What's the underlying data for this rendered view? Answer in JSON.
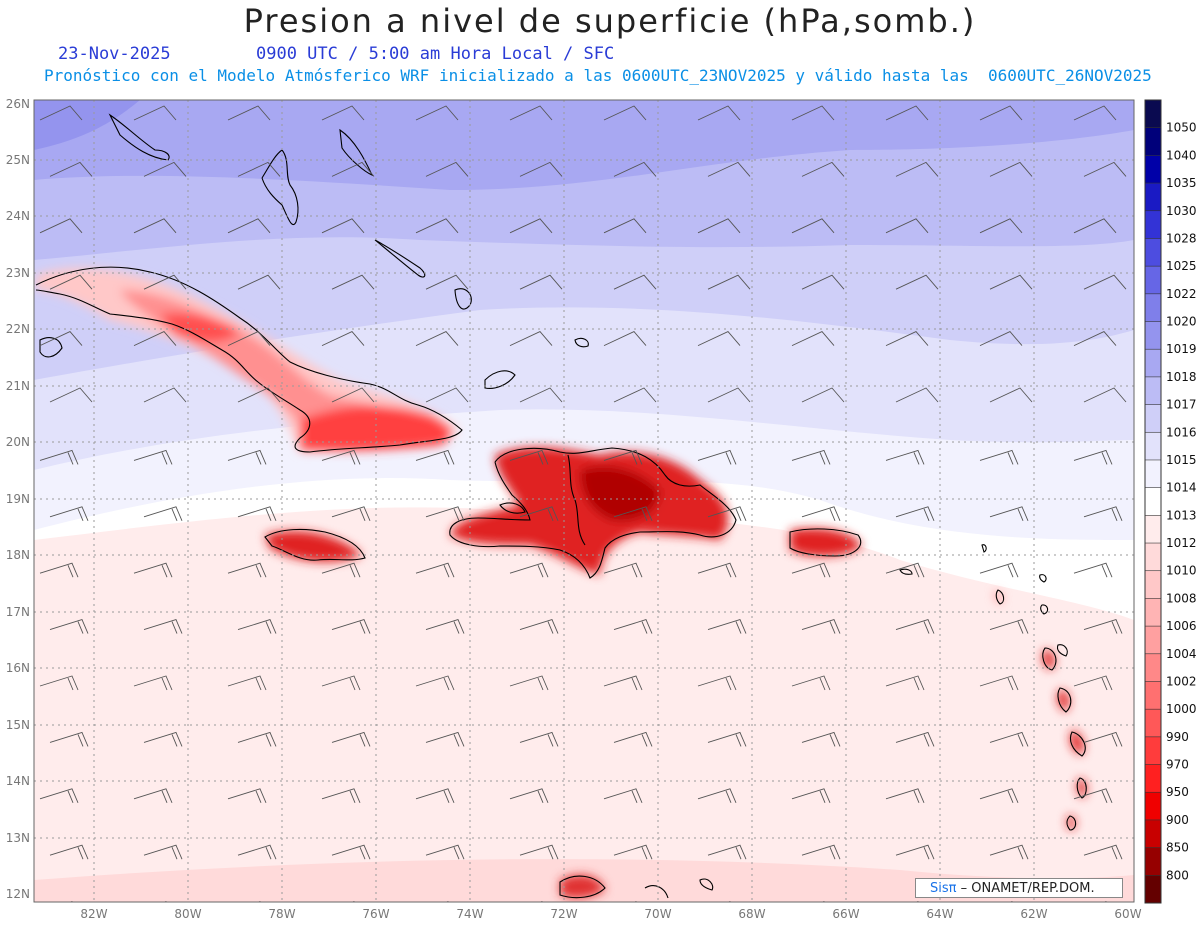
{
  "header": {
    "title": "Presion a nivel de superficie (hPa,somb.)",
    "date": "23-Nov-2025",
    "time_line": "0900 UTC / 5:00 am Hora Local / SFC",
    "forecast_line": "Pronóstico con el Modelo Atmósferico WRF inicializado a las 0600UTC_23NOV2025 y válido hasta las  0600UTC_26NOV2025"
  },
  "axes": {
    "lat_labels": [
      "26N",
      "25N",
      "24N",
      "23N",
      "22N",
      "21N",
      "20N",
      "19N",
      "18N",
      "17N",
      "16N",
      "15N",
      "14N",
      "13N",
      "12N"
    ],
    "lon_labels": [
      "82W",
      "80W",
      "78W",
      "76W",
      "74W",
      "72W",
      "70W",
      "68W",
      "66W",
      "64W",
      "62W",
      "60W"
    ]
  },
  "colorbar": {
    "labels": [
      "1050",
      "1040",
      "1035",
      "1030",
      "1028",
      "1025",
      "1022",
      "1020",
      "1019",
      "1018",
      "1017",
      "1016",
      "1015",
      "1014",
      "1013",
      "1012",
      "1010",
      "1008",
      "1006",
      "1004",
      "1002",
      "1000",
      "990",
      "970",
      "950",
      "900",
      "850",
      "800"
    ],
    "colors": [
      "#0a0a50",
      "#00007a",
      "#0000a8",
      "#1a1ac4",
      "#3333d6",
      "#4d4de0",
      "#6666e6",
      "#7f7fea",
      "#9494ee",
      "#a8a8f2",
      "#bcbcf5",
      "#cfcff8",
      "#e2e2fb",
      "#f2f2fe",
      "#ffffff",
      "#ffecec",
      "#ffdada",
      "#ffc8c8",
      "#ffb4b4",
      "#ffa0a0",
      "#ff8888",
      "#ff7070",
      "#ff5858",
      "#ff3c3c",
      "#ff2020",
      "#f00000",
      "#c80000",
      "#960000",
      "#640000"
    ]
  },
  "credit": {
    "sis": "Sisπ",
    "text": "– ONAMET/REP.DOM."
  }
}
